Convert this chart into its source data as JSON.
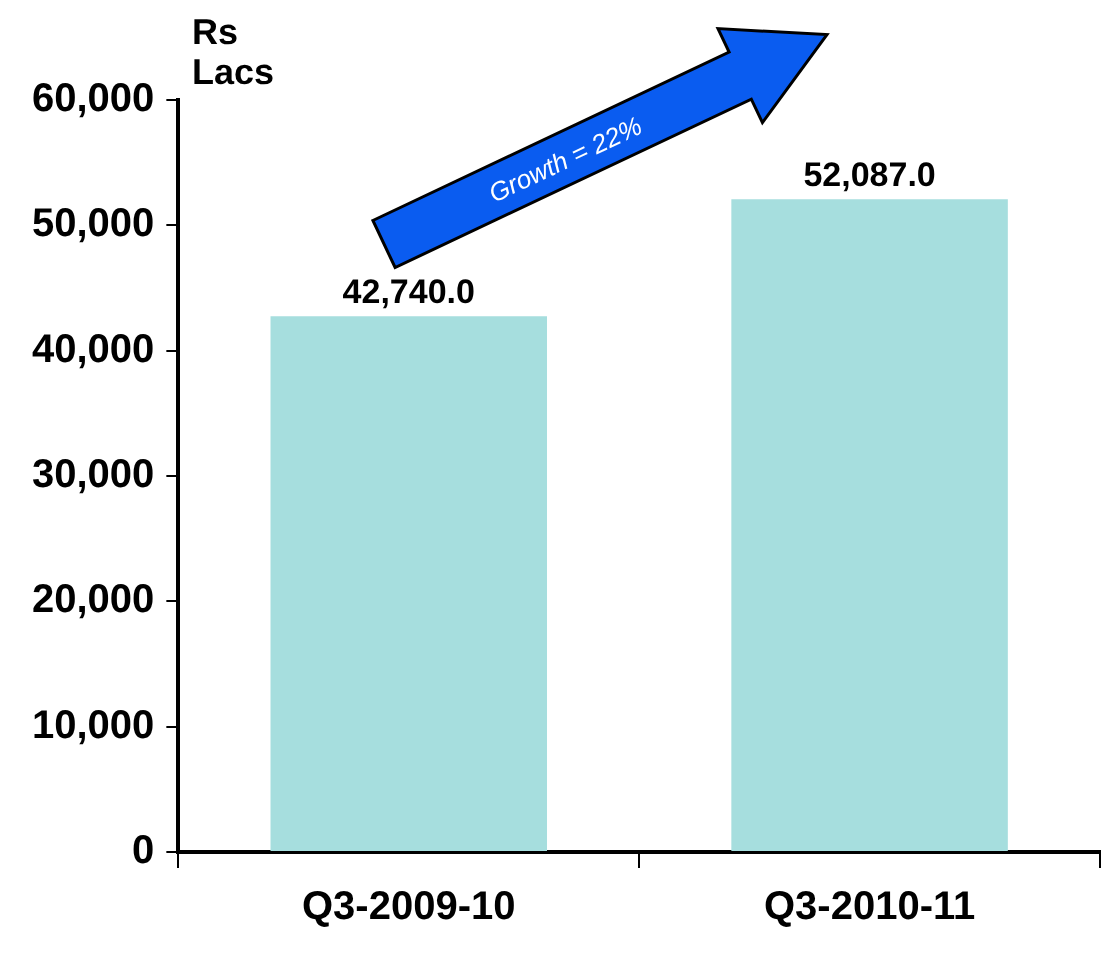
{
  "chart_data": {
    "type": "bar",
    "ylabel": "Rs Lacs",
    "categories": [
      "Q3-2009-10",
      "Q3-2010-11"
    ],
    "values": [
      42740,
      52087
    ],
    "color": "#a6dede",
    "value_labels": [
      "42,740.0",
      "52,087.0"
    ],
    "ylim": [
      0,
      60000
    ],
    "yticks": [
      {
        "value": 0,
        "label": "0"
      },
      {
        "value": 10000,
        "label": "10,000"
      },
      {
        "value": 20000,
        "label": "20,000"
      },
      {
        "value": 30000,
        "label": "30,000"
      },
      {
        "value": 40000,
        "label": "40,000"
      },
      {
        "value": 50000,
        "label": "50,000"
      },
      {
        "value": 60000,
        "label": "60,000"
      }
    ],
    "grid": false,
    "legend": false,
    "annotations": [
      "Growth = 22%"
    ]
  }
}
